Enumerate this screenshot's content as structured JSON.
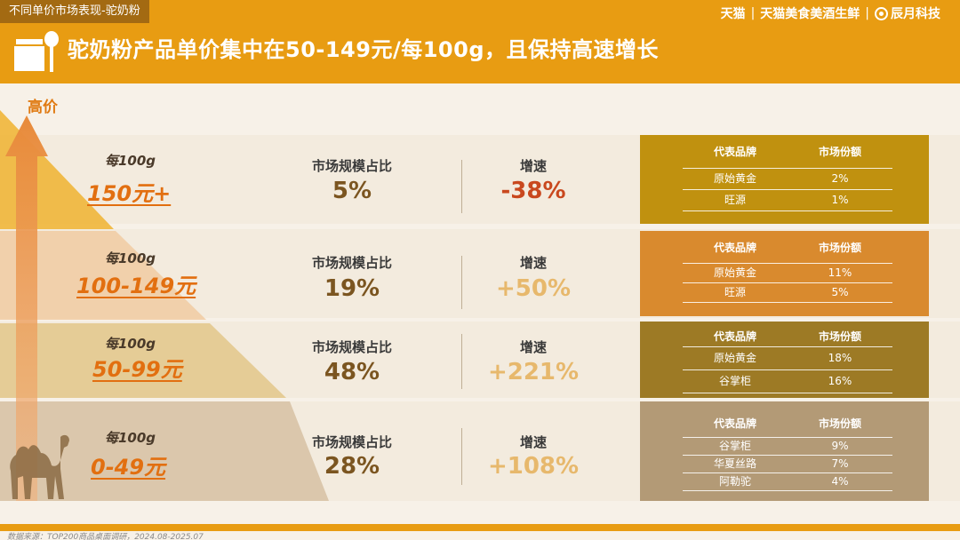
{
  "header": {
    "section_tag": "不同单价市场表现-驼奶粉",
    "title": "驼奶粉产品单价集中在50-149元/每100g，且保持高速增长",
    "logos": [
      "天猫",
      "天猫美食美酒生鲜",
      "辰月科技"
    ],
    "logo_separator": "|"
  },
  "axis": {
    "label": "高价"
  },
  "table_headers": {
    "brand": "代表品牌",
    "share": "市场份额"
  },
  "tiers": [
    {
      "unit_label": "每100g",
      "price": "150元+",
      "share_label": "市场规模占比",
      "share": "5%",
      "growth_label": "增速",
      "growth": "-38%",
      "growth_color": "#c9481e",
      "box_color": "#c0910f",
      "brands": [
        {
          "name": "原始黄金",
          "share": "2%"
        },
        {
          "name": "旺源",
          "share": "1%"
        }
      ]
    },
    {
      "unit_label": "每100g",
      "price": "100-149元",
      "share_label": "市场规模占比",
      "share": "19%",
      "growth_label": "增速",
      "growth": "+50%",
      "growth_color": "#e7b86c",
      "box_color": "#d98a2e",
      "brands": [
        {
          "name": "原始黄金",
          "share": "11%"
        },
        {
          "name": "旺源",
          "share": "5%"
        }
      ]
    },
    {
      "unit_label": "每100g",
      "price": "50-99元",
      "share_label": "市场规模占比",
      "share": "48%",
      "growth_label": "增速",
      "growth": "+221%",
      "growth_color": "#e7b86c",
      "box_color": "#9d7a25",
      "brands": [
        {
          "name": "原始黄金",
          "share": "18%"
        },
        {
          "name": "谷掌柜",
          "share": "16%"
        }
      ]
    },
    {
      "unit_label": "每100g",
      "price": "0-49元",
      "share_label": "市场规模占比",
      "share": "28%",
      "growth_label": "增速",
      "growth": "+108%",
      "growth_color": "#e7b86c",
      "box_color": "#b39a76",
      "brands": [
        {
          "name": "谷掌柜",
          "share": "9%"
        },
        {
          "name": "华夏丝路",
          "share": "7%"
        },
        {
          "name": "阿勒驼",
          "share": "4%"
        }
      ]
    }
  ],
  "footer": {
    "source": "数据来源：TOP200商品桌面调研，2024.08-2025.07"
  },
  "colors": {
    "accent": "#e89c12",
    "tag_bg": "#a36a12",
    "price": "#e26f10"
  },
  "icons": {
    "title": "food-jar-spoon-icon",
    "axis": "up-arrow-icon",
    "decor": "camel-icon"
  }
}
